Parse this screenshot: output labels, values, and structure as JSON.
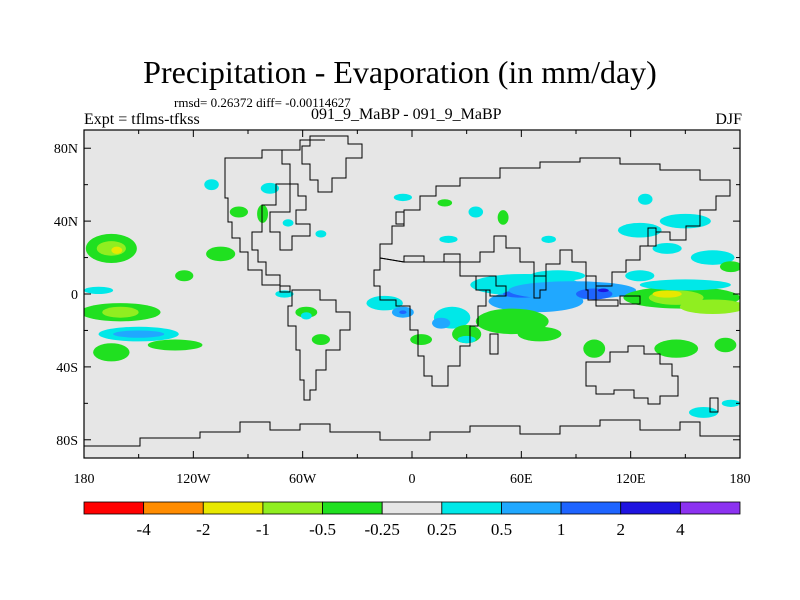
{
  "chart_data": {
    "type": "heatmap",
    "title": "Precipitation - Evaporation (in mm/day)",
    "stats": "rmsd= 0.26372 diff= -0.00114627",
    "left_label": "Expt = tflms-tfkss",
    "center_label": "091_9_MaBP - 091_9_MaBP",
    "right_label": "DJF",
    "x_ticks": [
      "180",
      "120W",
      "60W",
      "0",
      "60E",
      "120E",
      "180"
    ],
    "x_tick_values": [
      -180,
      -120,
      -60,
      0,
      60,
      120,
      180
    ],
    "y_ticks": [
      "80N",
      "40N",
      "0",
      "40S",
      "80S"
    ],
    "y_tick_values": [
      80,
      40,
      0,
      -40,
      -80
    ],
    "xlim": [
      -180,
      180
    ],
    "ylim": [
      -90,
      90
    ],
    "colorbar": {
      "labels": [
        "-4",
        "-2",
        "-1",
        "-0.5",
        "-0.25",
        "0.25",
        "0.5",
        "1",
        "2",
        "4"
      ],
      "colors": [
        "#ff0000",
        "#ff8c00",
        "#e8e800",
        "#90ee20",
        "#20e020",
        "#e6e6e6",
        "#00e8e8",
        "#20a8ff",
        "#1e64ff",
        "#1e14e0",
        "#8c32f0"
      ]
    },
    "anomalies": [
      {
        "lon": -165,
        "lat": 25,
        "rx": 14,
        "ry": 8,
        "level": 4
      },
      {
        "lon": -165,
        "lat": 25,
        "rx": 8,
        "ry": 4,
        "level": 3
      },
      {
        "lon": -162,
        "lat": 24,
        "rx": 3,
        "ry": 2,
        "level": 2
      },
      {
        "lon": -160,
        "lat": -10,
        "rx": 22,
        "ry": 5,
        "level": 4
      },
      {
        "lon": -160,
        "lat": -10,
        "rx": 10,
        "ry": 3,
        "level": 3
      },
      {
        "lon": -150,
        "lat": -22,
        "rx": 22,
        "ry": 4,
        "level": 6
      },
      {
        "lon": -150,
        "lat": -22,
        "rx": 14,
        "ry": 2,
        "level": 7
      },
      {
        "lon": -165,
        "lat": -32,
        "rx": 10,
        "ry": 5,
        "level": 4
      },
      {
        "lon": -172,
        "lat": 2,
        "rx": 8,
        "ry": 2,
        "level": 6
      },
      {
        "lon": -130,
        "lat": -28,
        "rx": 15,
        "ry": 3,
        "level": 4
      },
      {
        "lon": -105,
        "lat": 22,
        "rx": 8,
        "ry": 4,
        "level": 4
      },
      {
        "lon": -125,
        "lat": 10,
        "rx": 5,
        "ry": 3,
        "level": 4
      },
      {
        "lon": -95,
        "lat": 45,
        "rx": 5,
        "ry": 3,
        "level": 4
      },
      {
        "lon": -110,
        "lat": 60,
        "rx": 4,
        "ry": 3,
        "level": 6
      },
      {
        "lon": -78,
        "lat": 58,
        "rx": 5,
        "ry": 3,
        "level": 6
      },
      {
        "lon": -82,
        "lat": 44,
        "rx": 3,
        "ry": 5,
        "level": 4
      },
      {
        "lon": -50,
        "lat": 33,
        "rx": 3,
        "ry": 2,
        "level": 6
      },
      {
        "lon": -68,
        "lat": 39,
        "rx": 3,
        "ry": 2,
        "level": 6
      },
      {
        "lon": -58,
        "lat": -10,
        "rx": 6,
        "ry": 3,
        "level": 4
      },
      {
        "lon": -58,
        "lat": -12,
        "rx": 3,
        "ry": 2,
        "level": 6
      },
      {
        "lon": -70,
        "lat": 0,
        "rx": 5,
        "ry": 2,
        "level": 6
      },
      {
        "lon": -50,
        "lat": -25,
        "rx": 5,
        "ry": 3,
        "level": 4
      },
      {
        "lon": -15,
        "lat": -5,
        "rx": 10,
        "ry": 4,
        "level": 6
      },
      {
        "lon": -5,
        "lat": -10,
        "rx": 6,
        "ry": 3,
        "level": 7
      },
      {
        "lon": -5,
        "lat": -10,
        "rx": 2,
        "ry": 1,
        "level": 8
      },
      {
        "lon": 5,
        "lat": -25,
        "rx": 6,
        "ry": 3,
        "level": 4
      },
      {
        "lon": 22,
        "lat": -13,
        "rx": 10,
        "ry": 6,
        "level": 6
      },
      {
        "lon": 16,
        "lat": -16,
        "rx": 5,
        "ry": 3,
        "level": 7
      },
      {
        "lon": 18,
        "lat": 50,
        "rx": 4,
        "ry": 2,
        "level": 4
      },
      {
        "lon": -5,
        "lat": 53,
        "rx": 5,
        "ry": 2,
        "level": 6
      },
      {
        "lon": 35,
        "lat": 45,
        "rx": 4,
        "ry": 3,
        "level": 6
      },
      {
        "lon": 50,
        "lat": 42,
        "rx": 3,
        "ry": 4,
        "level": 4
      },
      {
        "lon": 62,
        "lat": 5,
        "rx": 30,
        "ry": 6,
        "level": 6
      },
      {
        "lon": 68,
        "lat": -4,
        "rx": 26,
        "ry": 6,
        "level": 7
      },
      {
        "lon": 60,
        "lat": 0,
        "rx": 10,
        "ry": 2,
        "level": 8
      },
      {
        "lon": 88,
        "lat": 2,
        "rx": 35,
        "ry": 5,
        "level": 7
      },
      {
        "lon": 100,
        "lat": 0,
        "rx": 10,
        "ry": 3,
        "level": 8
      },
      {
        "lon": 105,
        "lat": 2,
        "rx": 3,
        "ry": 1,
        "level": 9
      },
      {
        "lon": 80,
        "lat": 10,
        "rx": 15,
        "ry": 3,
        "level": 6
      },
      {
        "lon": 55,
        "lat": -15,
        "rx": 20,
        "ry": 7,
        "level": 4
      },
      {
        "lon": 70,
        "lat": -22,
        "rx": 12,
        "ry": 4,
        "level": 4
      },
      {
        "lon": 30,
        "lat": -22,
        "rx": 8,
        "ry": 5,
        "level": 4
      },
      {
        "lon": 30,
        "lat": -25,
        "rx": 5,
        "ry": 2,
        "level": 6
      },
      {
        "lon": 100,
        "lat": -30,
        "rx": 6,
        "ry": 5,
        "level": 4
      },
      {
        "lon": 20,
        "lat": 30,
        "rx": 5,
        "ry": 2,
        "level": 6
      },
      {
        "lon": 75,
        "lat": 30,
        "rx": 4,
        "ry": 2,
        "level": 6
      },
      {
        "lon": 125,
        "lat": 10,
        "rx": 8,
        "ry": 3,
        "level": 6
      },
      {
        "lon": 148,
        "lat": -2,
        "rx": 32,
        "ry": 6,
        "level": 4
      },
      {
        "lon": 145,
        "lat": -2,
        "rx": 15,
        "ry": 4,
        "level": 3
      },
      {
        "lon": 140,
        "lat": 0,
        "rx": 8,
        "ry": 2,
        "level": 2
      },
      {
        "lon": 165,
        "lat": -7,
        "rx": 18,
        "ry": 4,
        "level": 3
      },
      {
        "lon": 150,
        "lat": 5,
        "rx": 25,
        "ry": 3,
        "level": 6
      },
      {
        "lon": 145,
        "lat": -30,
        "rx": 12,
        "ry": 5,
        "level": 4
      },
      {
        "lon": 125,
        "lat": 35,
        "rx": 12,
        "ry": 4,
        "level": 6
      },
      {
        "lon": 150,
        "lat": 40,
        "rx": 14,
        "ry": 4,
        "level": 6
      },
      {
        "lon": 165,
        "lat": 20,
        "rx": 12,
        "ry": 4,
        "level": 6
      },
      {
        "lon": 140,
        "lat": 25,
        "rx": 8,
        "ry": 3,
        "level": 6
      },
      {
        "lon": 175,
        "lat": 15,
        "rx": 6,
        "ry": 3,
        "level": 4
      },
      {
        "lon": 172,
        "lat": -28,
        "rx": 6,
        "ry": 4,
        "level": 4
      },
      {
        "lon": 160,
        "lat": -65,
        "rx": 8,
        "ry": 3,
        "level": 6
      },
      {
        "lon": 175,
        "lat": -60,
        "rx": 5,
        "ry": 2,
        "level": 6
      },
      {
        "lon": 128,
        "lat": 52,
        "rx": 4,
        "ry": 3,
        "level": 6
      }
    ]
  }
}
